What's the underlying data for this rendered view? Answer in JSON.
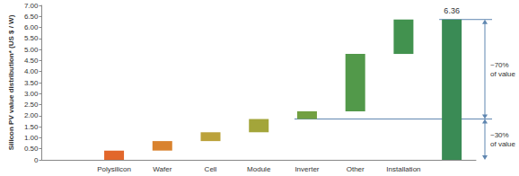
{
  "chart_data": {
    "type": "waterfall",
    "y_label": "Silicon PV value distribution* (US $ / W)",
    "categories": [
      null,
      "Polysilicon",
      "Wafer",
      "Cell",
      "Module",
      "Inverter",
      "Other",
      "Installation",
      null
    ],
    "values": [
      null,
      0.42,
      0.43,
      0.4,
      0.6,
      0.35,
      2.6,
      1.56,
      6.36
    ],
    "value_labels": [
      null,
      null,
      null,
      null,
      null,
      null,
      null,
      null,
      "6.36"
    ],
    "colors": [
      null,
      "#e2672b",
      "#d9822e",
      "#bba23b",
      "#a3a53a",
      "#72a042",
      "#52994a",
      "#42924f",
      "#3a8b55"
    ],
    "ylim": [
      0,
      7
    ],
    "yticks": [
      0,
      {
        "value": 0.5,
        "label": "0.50"
      },
      {
        "value": 1,
        "label": "1.00"
      },
      {
        "value": 1.5,
        "label": "1.50"
      },
      {
        "value": 2,
        "label": "2.00"
      },
      {
        "value": 2.5,
        "label": "2.50"
      },
      {
        "value": 3,
        "label": "3.00"
      },
      {
        "value": 3.5,
        "label": "3.50"
      },
      {
        "value": 4,
        "label": "4.00"
      },
      {
        "value": 4.5,
        "label": "4.50"
      },
      {
        "value": 5,
        "label": "5.00"
      },
      {
        "value": 5.5,
        "label": "5.50"
      },
      {
        "value": 6,
        "label": "6.00"
      },
      {
        "value": 6.5,
        "label": "6.50"
      },
      {
        "value": 7,
        "label": "7.00"
      }
    ],
    "grid": false,
    "annotations": [
      {
        "text": "~70%\nof value",
        "from": 1.85,
        "to": 6.36
      },
      {
        "text": "~30%\nof value",
        "from": 0,
        "to": 1.85
      }
    ]
  }
}
